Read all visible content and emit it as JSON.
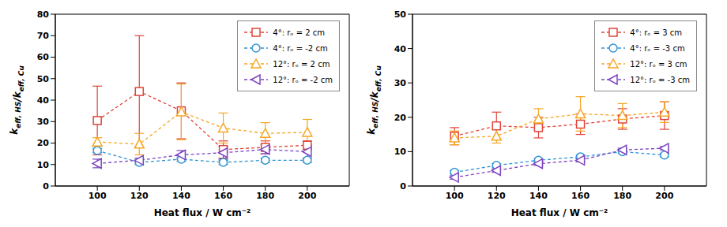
{
  "chart_data": [
    {
      "type": "line",
      "xlabel": "Heat flux / W cm⁻²",
      "ylabel": "keff, HS/keff, Cu",
      "x": [
        100,
        120,
        140,
        160,
        180,
        200
      ],
      "xlim": [
        80,
        220
      ],
      "xticks": [
        100,
        120,
        140,
        160,
        180,
        200
      ],
      "ylim": [
        0,
        80
      ],
      "yticks": [
        0,
        10,
        20,
        30,
        40,
        50,
        60,
        70,
        80
      ],
      "legend": "upper right",
      "grid": false,
      "series": [
        {
          "name": "4°: rₒ = 2 cm",
          "color": "#e0443a",
          "marker": "square",
          "line_style": "dashed",
          "values": [
            30.5,
            44,
            35,
            17,
            18,
            19
          ],
          "errors": [
            16,
            26,
            13,
            4,
            3,
            2
          ]
        },
        {
          "name": "4°: rₒ = -2 cm",
          "color": "#2f93d3",
          "marker": "circle",
          "line_style": "dashed",
          "values": [
            16.5,
            11,
            12.5,
            11,
            12,
            12
          ],
          "errors": [
            1,
            1,
            1,
            1,
            1,
            1
          ]
        },
        {
          "name": "12°: rₒ = 2 cm",
          "color": "#f5a623",
          "marker": "triangle-up",
          "line_style": "dashed",
          "values": [
            20.5,
            19.5,
            34.5,
            27,
            24.5,
            25
          ],
          "errors": [
            2,
            5,
            13,
            7,
            5,
            6
          ]
        },
        {
          "name": "12°: rₒ = -2 cm",
          "color": "#7d45c2",
          "marker": "triangle-left",
          "line_style": "dashed",
          "values": [
            10.5,
            12,
            14.5,
            15.5,
            17,
            16
          ],
          "errors": [
            2,
            1,
            2,
            3,
            2,
            3
          ]
        }
      ]
    },
    {
      "type": "line",
      "xlabel": "Heat flux / W cm⁻²",
      "ylabel": "keff, HS/keff, Cu",
      "x": [
        100,
        120,
        140,
        160,
        180,
        200
      ],
      "xlim": [
        80,
        220
      ],
      "xticks": [
        100,
        120,
        140,
        160,
        180,
        200
      ],
      "ylim": [
        0,
        50
      ],
      "yticks": [
        0,
        10,
        20,
        30,
        40,
        50
      ],
      "legend": "upper right",
      "grid": false,
      "series": [
        {
          "name": "4°: rₒ = 3 cm",
          "color": "#e0443a",
          "marker": "square",
          "line_style": "dashed",
          "values": [
            14.5,
            17.5,
            17,
            18,
            19.5,
            20.5
          ],
          "errors": [
            2.5,
            4,
            3,
            3,
            3,
            4
          ]
        },
        {
          "name": "4°: rₒ = -3 cm",
          "color": "#2f93d3",
          "marker": "circle",
          "line_style": "dashed",
          "values": [
            4,
            6,
            7.5,
            8.5,
            10,
            9
          ],
          "errors": [
            0.5,
            0.5,
            0.5,
            0.5,
            0.5,
            0.5
          ]
        },
        {
          "name": "12°: rₒ = 3 cm",
          "color": "#f5a623",
          "marker": "triangle-up",
          "line_style": "dashed",
          "values": [
            14,
            14.5,
            19.5,
            21,
            20.5,
            21.5
          ],
          "errors": [
            2,
            2,
            3,
            5,
            3.5,
            3
          ]
        },
        {
          "name": "12°: rₒ = -3 cm",
          "color": "#7d45c2",
          "marker": "triangle-left",
          "line_style": "dashed",
          "values": [
            2.5,
            4.5,
            6.5,
            7.5,
            10.5,
            11
          ],
          "errors": [
            0.5,
            0.5,
            0.5,
            0.5,
            0.5,
            0.5
          ]
        }
      ]
    }
  ]
}
